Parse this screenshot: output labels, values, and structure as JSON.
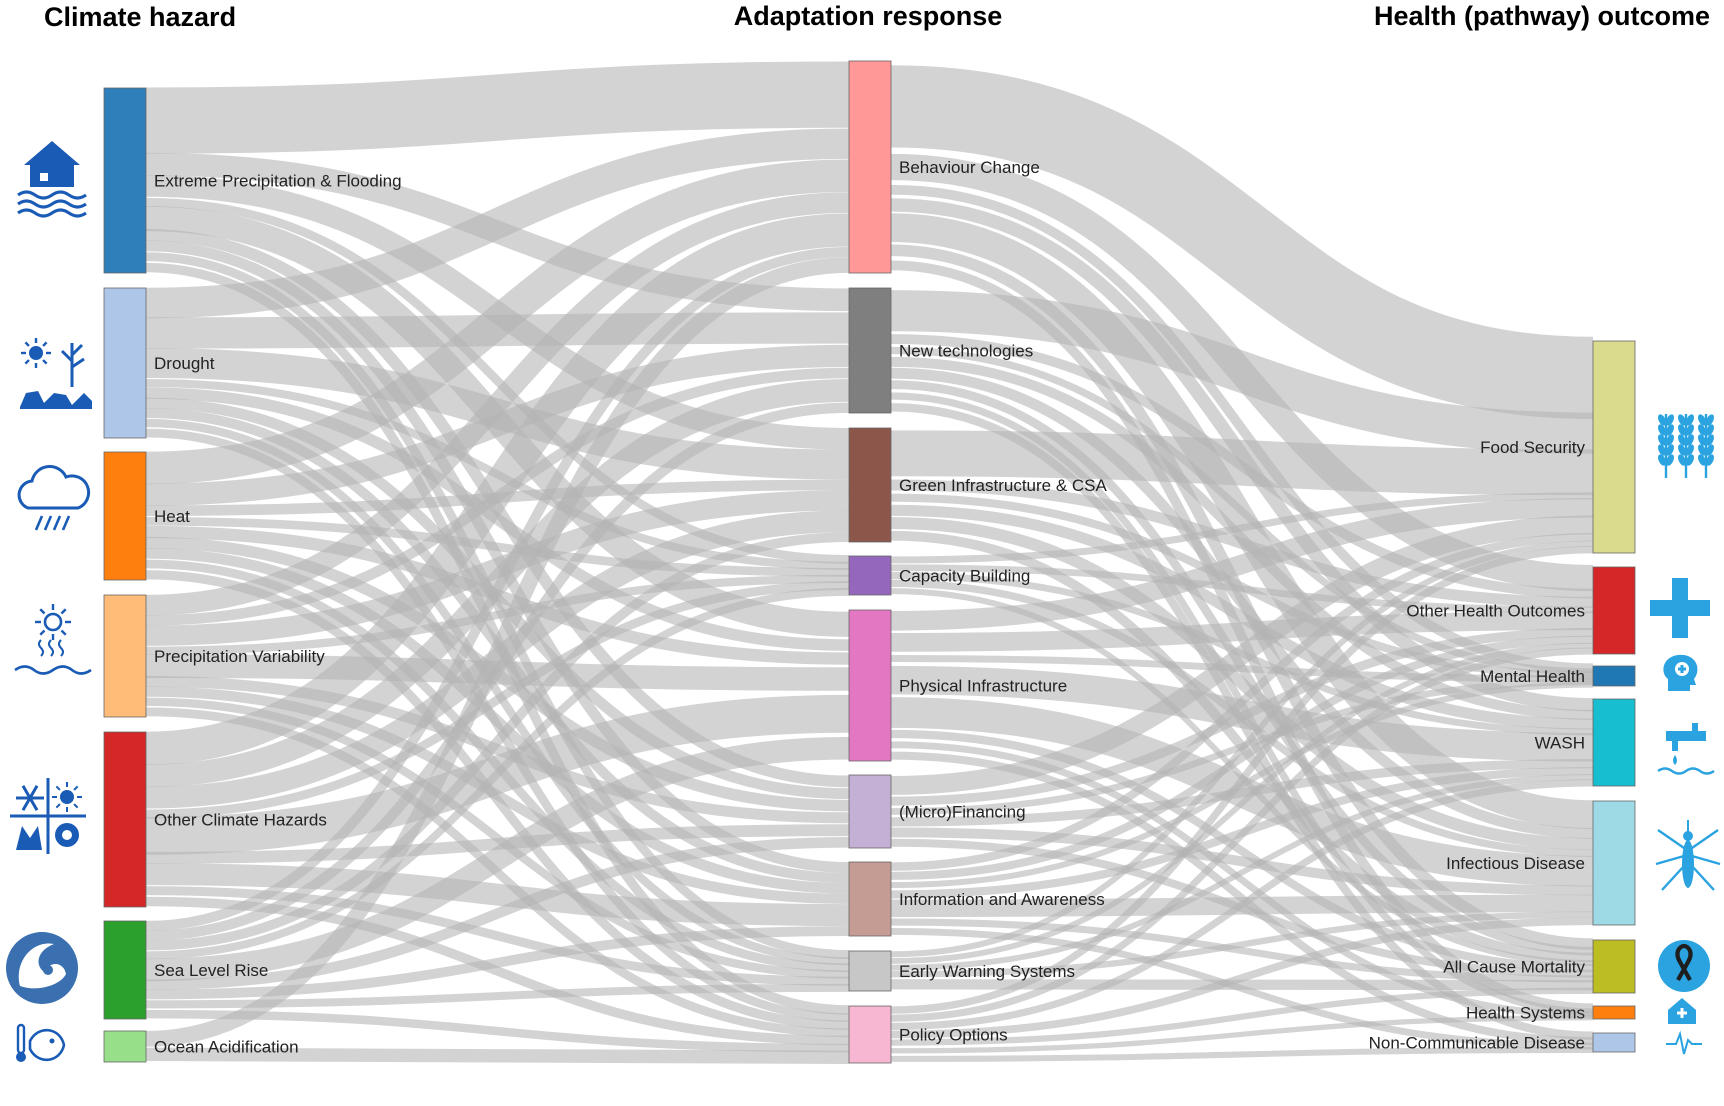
{
  "columns": {
    "hazard": "Climate hazard",
    "response": "Adaptation response",
    "outcome": "Health (pathway) outcome"
  },
  "hazards": [
    {
      "id": "h0",
      "label": "Extreme Precipitation & Flooding",
      "color": "#2e7fba",
      "icon": "flooded-house-icon"
    },
    {
      "id": "h1",
      "label": "Drought",
      "color": "#aec7e8",
      "icon": "drought-icon"
    },
    {
      "id": "h2",
      "label": "Heat",
      "color": "#ff7f0e",
      "icon": "rain-cloud-icon"
    },
    {
      "id": "h3",
      "label": "Precipitation Variability",
      "color": "#ffbb78",
      "icon": "sun-heat-waves-icon"
    },
    {
      "id": "h4",
      "label": "Other Climate Hazards",
      "color": "#d62728",
      "icon": "mixed-weather-icon"
    },
    {
      "id": "h5",
      "label": "Sea Level Rise",
      "color": "#2ca02c",
      "icon": "wave-icon"
    },
    {
      "id": "h6",
      "label": "Ocean Acidification",
      "color": "#98df8a",
      "icon": "fish-thermometer-icon"
    }
  ],
  "responses": [
    {
      "id": "r0",
      "label": "Behaviour Change",
      "color": "#ff9896"
    },
    {
      "id": "r1",
      "label": "New technologies",
      "color": "#7f7f7f"
    },
    {
      "id": "r2",
      "label": "Green Infrastructure & CSA",
      "color": "#8c564b"
    },
    {
      "id": "r3",
      "label": "Capacity Building",
      "color": "#9467bd"
    },
    {
      "id": "r4",
      "label": "Physical Infrastructure",
      "color": "#e377c2"
    },
    {
      "id": "r5",
      "label": "(Micro)Financing",
      "color": "#c5b0d5"
    },
    {
      "id": "r6",
      "label": "Information and Awareness",
      "color": "#c49c94"
    },
    {
      "id": "r7",
      "label": "Early Warning Systems",
      "color": "#c7c7c7"
    },
    {
      "id": "r8",
      "label": "Policy Options",
      "color": "#f7b6d2"
    }
  ],
  "outcomes": [
    {
      "id": "o0",
      "label": "Food Security",
      "color": "#dbdb8d",
      "icon": "wheat-icon"
    },
    {
      "id": "o1",
      "label": "Other Health Outcomes",
      "color": "#d62728",
      "icon": "medical-cross-icon"
    },
    {
      "id": "o2",
      "label": "Mental Health",
      "color": "#1f77b4",
      "icon": "head-mind-icon"
    },
    {
      "id": "o3",
      "label": "WASH",
      "color": "#17becf",
      "icon": "water-tap-icon"
    },
    {
      "id": "o4",
      "label": "Infectious Disease",
      "color": "#9edae5",
      "icon": "mosquito-icon"
    },
    {
      "id": "o5",
      "label": "All Cause Mortality",
      "color": "#bcbd22",
      "icon": "ribbon-icon"
    },
    {
      "id": "o6",
      "label": "Health Systems",
      "color": "#ff7f0e",
      "icon": "clinic-icon"
    },
    {
      "id": "o7",
      "label": "Non-Communicable Disease",
      "color": "#aec7e8",
      "icon": "heartbeat-icon"
    }
  ],
  "icon_color": "#1a5bb5",
  "outcome_icon_color": "#2aa3e0"
}
